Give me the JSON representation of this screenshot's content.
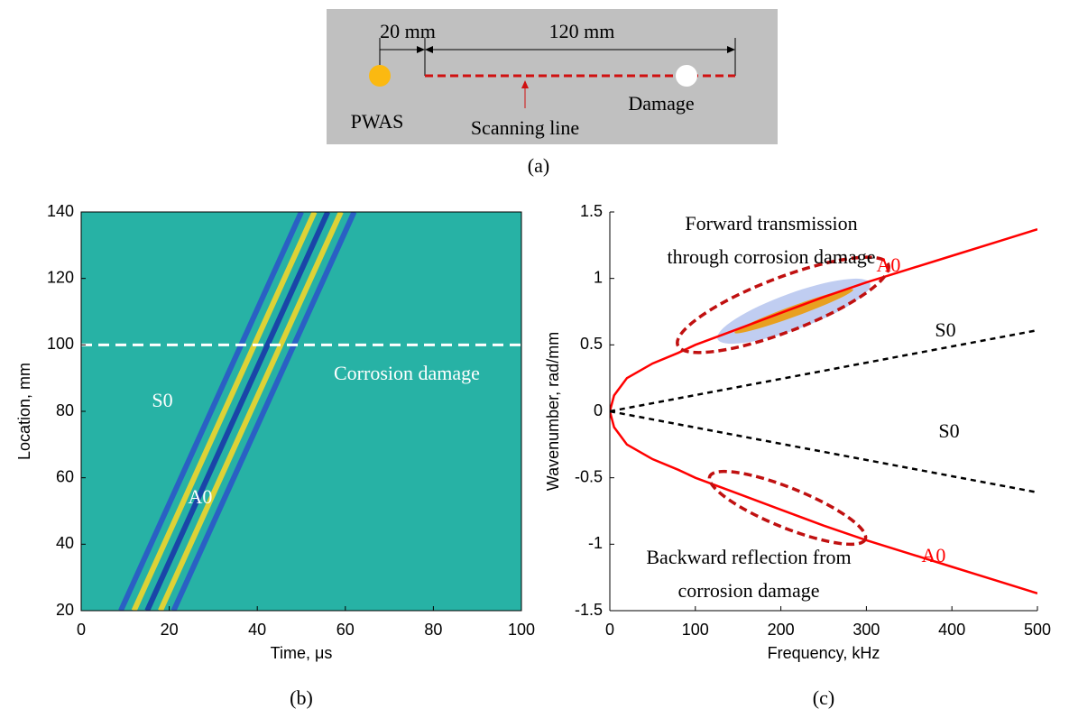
{
  "diagram": {
    "dimension_left": "20 mm",
    "dimension_right": "120 mm",
    "sensor": "PWAS",
    "scan": "Scanning line",
    "damage": "Damage",
    "caption": "(a)"
  },
  "chart_data": [
    {
      "type": "heatmap",
      "caption": "(b)",
      "x_label": "Time, μs",
      "y_label": "Location, mm",
      "xlim": [
        0,
        100
      ],
      "ylim": [
        20,
        140
      ],
      "xticks": [
        0,
        20,
        40,
        60,
        80,
        100
      ],
      "yticks": [
        20,
        40,
        60,
        80,
        100,
        120,
        140
      ],
      "background": "#27b2a5",
      "series": [
        {
          "color": "#2b57c8",
          "x": [
            9,
            50
          ],
          "values": [
            20,
            140
          ]
        },
        {
          "color": "#f2d52a",
          "x": [
            12,
            53
          ],
          "values": [
            20,
            140
          ]
        },
        {
          "color": "#1838a8",
          "x": [
            15,
            56
          ],
          "values": [
            20,
            140
          ]
        },
        {
          "color": "#f2d52a",
          "x": [
            18,
            59
          ],
          "values": [
            20,
            140
          ]
        },
        {
          "color": "#2b57c8",
          "x": [
            21,
            62
          ],
          "values": [
            20,
            140
          ]
        }
      ],
      "hline": {
        "value": 100,
        "color": "#ffffff"
      },
      "annotations": [
        {
          "text": "S0",
          "color": "#ffffff"
        },
        {
          "text": "A0",
          "color": "#ffffff"
        },
        {
          "text": "Corrosion damage",
          "color": "#ffffff"
        }
      ]
    },
    {
      "type": "line",
      "caption": "(c)",
      "x_label": "Frequency, kHz",
      "y_label": "Wavenumber, rad/mm",
      "xlim": [
        0,
        500
      ],
      "ylim": [
        -1.5,
        1.5
      ],
      "xticks": [
        0,
        100,
        200,
        300,
        400,
        500
      ],
      "yticks": [
        -1.5,
        -1,
        -0.5,
        0,
        0.5,
        1,
        1.5
      ],
      "series": [
        {
          "color": "#ff0000",
          "dashed": false,
          "x": [
            0,
            5,
            20,
            50,
            80,
            100,
            150,
            200,
            250,
            300,
            350,
            400,
            450,
            500
          ],
          "values": [
            0,
            0.12,
            0.25,
            0.36,
            0.44,
            0.5,
            0.62,
            0.74,
            0.86,
            0.97,
            1.07,
            1.17,
            1.27,
            1.37
          ]
        },
        {
          "color": "#ff0000",
          "dashed": false,
          "x": [
            0,
            5,
            20,
            50,
            80,
            100,
            150,
            200,
            250,
            300,
            350,
            400,
            450,
            500
          ],
          "values": [
            0,
            -0.12,
            -0.25,
            -0.36,
            -0.44,
            -0.5,
            -0.62,
            -0.74,
            -0.86,
            -0.97,
            -1.07,
            -1.17,
            -1.27,
            -1.37
          ]
        },
        {
          "color": "#000000",
          "dashed": true,
          "x": [
            0,
            500
          ],
          "values": [
            0,
            0.61
          ]
        },
        {
          "color": "#000000",
          "dashed": true,
          "x": [
            0,
            500
          ],
          "values": [
            0,
            -0.61
          ]
        }
      ],
      "annotations": [
        {
          "text": "A0",
          "color": "#ff0000"
        },
        {
          "text": "S0",
          "color": "#000000"
        },
        {
          "text": "S0",
          "color": "#000000"
        },
        {
          "text": "A0",
          "color": "#ff0000"
        },
        {
          "lines": [
            "Forward transmission",
            "through corrosion damage"
          ],
          "color": "#000000"
        },
        {
          "lines": [
            "Backward reflection from",
            "corrosion damage"
          ],
          "color": "#000000"
        }
      ]
    }
  ]
}
